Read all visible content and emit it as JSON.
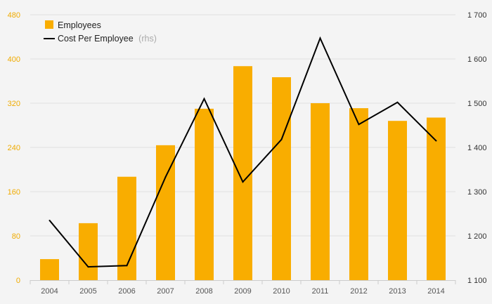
{
  "chart_data": {
    "type": "bar",
    "categories": [
      "2004",
      "2005",
      "2006",
      "2007",
      "2008",
      "2009",
      "2010",
      "2011",
      "2012",
      "2013",
      "2014"
    ],
    "series": [
      {
        "name": "Employees",
        "type": "bar",
        "axis": "left",
        "color": "#f9ad00",
        "values": [
          38,
          103,
          187,
          244,
          310,
          387,
          367,
          320,
          311,
          288,
          294
        ]
      },
      {
        "name": "Cost Per Employee",
        "note": "(rhs)",
        "type": "line",
        "axis": "right",
        "color": "#000000",
        "values": [
          1235,
          1130,
          1133,
          1333,
          1510,
          1322,
          1418,
          1647,
          1452,
          1502,
          1415
        ]
      }
    ],
    "left_axis": {
      "ylim": [
        0,
        480
      ],
      "ticks": [
        0,
        80,
        160,
        240,
        320,
        400,
        480
      ],
      "tick_labels": [
        "0",
        "80",
        "160",
        "240",
        "320",
        "400",
        "480"
      ],
      "color": "#f0ab00"
    },
    "right_axis": {
      "ylim": [
        1100,
        1700
      ],
      "ticks": [
        1100,
        1200,
        1300,
        1400,
        1500,
        1600,
        1700
      ],
      "tick_labels": [
        "1 100",
        "1 200",
        "1 300",
        "1 400",
        "1 500",
        "1 600",
        "1 700"
      ],
      "color": "#333333"
    },
    "grid": true,
    "legend": "top-left",
    "title": "",
    "xlabel": "",
    "ylabel": ""
  }
}
